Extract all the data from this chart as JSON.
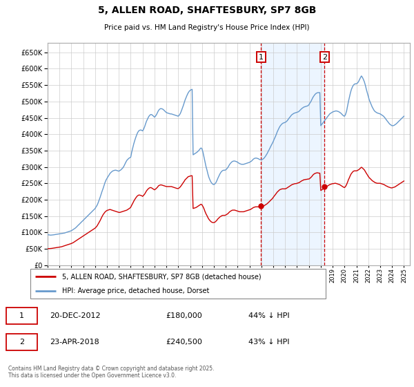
{
  "title": "5, ALLEN ROAD, SHAFTESBURY, SP7 8GB",
  "subtitle": "Price paid vs. HM Land Registry's House Price Index (HPI)",
  "ylim": [
    0,
    680000
  ],
  "yticks": [
    0,
    50000,
    100000,
    150000,
    200000,
    250000,
    300000,
    350000,
    400000,
    450000,
    500000,
    550000,
    600000,
    650000
  ],
  "xlim_start": 1995.0,
  "xlim_end": 2025.5,
  "hpi_color": "#6699cc",
  "price_color": "#cc0000",
  "sale1_date_num": 2012.97,
  "sale2_date_num": 2018.31,
  "sale1_price": 180000,
  "sale2_price": 240500,
  "box_color": "#cc0000",
  "shade_color": "#ddeeff",
  "footnote": "Contains HM Land Registry data © Crown copyright and database right 2025.\nThis data is licensed under the Open Government Licence v3.0.",
  "legend1": "5, ALLEN ROAD, SHAFTESBURY, SP7 8GB (detached house)",
  "legend2": "HPI: Average price, detached house, Dorset",
  "hpi_years": [
    1995.0,
    1995.08,
    1995.17,
    1995.25,
    1995.33,
    1995.42,
    1995.5,
    1995.58,
    1995.67,
    1995.75,
    1995.83,
    1995.92,
    1996.0,
    1996.08,
    1996.17,
    1996.25,
    1996.33,
    1996.42,
    1996.5,
    1996.58,
    1996.67,
    1996.75,
    1996.83,
    1996.92,
    1997.0,
    1997.08,
    1997.17,
    1997.25,
    1997.33,
    1997.42,
    1997.5,
    1997.58,
    1997.67,
    1997.75,
    1997.83,
    1997.92,
    1998.0,
    1998.08,
    1998.17,
    1998.25,
    1998.33,
    1998.42,
    1998.5,
    1998.58,
    1998.67,
    1998.75,
    1998.83,
    1998.92,
    1999.0,
    1999.08,
    1999.17,
    1999.25,
    1999.33,
    1999.42,
    1999.5,
    1999.58,
    1999.67,
    1999.75,
    1999.83,
    1999.92,
    2000.0,
    2000.08,
    2000.17,
    2000.25,
    2000.33,
    2000.42,
    2000.5,
    2000.58,
    2000.67,
    2000.75,
    2000.83,
    2000.92,
    2001.0,
    2001.08,
    2001.17,
    2001.25,
    2001.33,
    2001.42,
    2001.5,
    2001.58,
    2001.67,
    2001.75,
    2001.83,
    2001.92,
    2002.0,
    2002.08,
    2002.17,
    2002.25,
    2002.33,
    2002.42,
    2002.5,
    2002.58,
    2002.67,
    2002.75,
    2002.83,
    2002.92,
    2003.0,
    2003.08,
    2003.17,
    2003.25,
    2003.33,
    2003.42,
    2003.5,
    2003.58,
    2003.67,
    2003.75,
    2003.83,
    2003.92,
    2004.0,
    2004.08,
    2004.17,
    2004.25,
    2004.33,
    2004.42,
    2004.5,
    2004.58,
    2004.67,
    2004.75,
    2004.83,
    2004.92,
    2005.0,
    2005.08,
    2005.17,
    2005.25,
    2005.33,
    2005.42,
    2005.5,
    2005.58,
    2005.67,
    2005.75,
    2005.83,
    2005.92,
    2006.0,
    2006.08,
    2006.17,
    2006.25,
    2006.33,
    2006.42,
    2006.5,
    2006.58,
    2006.67,
    2006.75,
    2006.83,
    2006.92,
    2007.0,
    2007.08,
    2007.17,
    2007.25,
    2007.33,
    2007.42,
    2007.5,
    2007.58,
    2007.67,
    2007.75,
    2007.83,
    2007.92,
    2008.0,
    2008.08,
    2008.17,
    2008.25,
    2008.33,
    2008.42,
    2008.5,
    2008.58,
    2008.67,
    2008.75,
    2008.83,
    2008.92,
    2009.0,
    2009.08,
    2009.17,
    2009.25,
    2009.33,
    2009.42,
    2009.5,
    2009.58,
    2009.67,
    2009.75,
    2009.83,
    2009.92,
    2010.0,
    2010.08,
    2010.17,
    2010.25,
    2010.33,
    2010.42,
    2010.5,
    2010.58,
    2010.67,
    2010.75,
    2010.83,
    2010.92,
    2011.0,
    2011.08,
    2011.17,
    2011.25,
    2011.33,
    2011.42,
    2011.5,
    2011.58,
    2011.67,
    2011.75,
    2011.83,
    2011.92,
    2012.0,
    2012.08,
    2012.17,
    2012.25,
    2012.33,
    2012.42,
    2012.5,
    2012.58,
    2012.67,
    2012.75,
    2012.83,
    2012.92,
    2013.0,
    2013.08,
    2013.17,
    2013.25,
    2013.33,
    2013.42,
    2013.5,
    2013.58,
    2013.67,
    2013.75,
    2013.83,
    2013.92,
    2014.0,
    2014.08,
    2014.17,
    2014.25,
    2014.33,
    2014.42,
    2014.5,
    2014.58,
    2014.67,
    2014.75,
    2014.83,
    2014.92,
    2015.0,
    2015.08,
    2015.17,
    2015.25,
    2015.33,
    2015.42,
    2015.5,
    2015.58,
    2015.67,
    2015.75,
    2015.83,
    2015.92,
    2016.0,
    2016.08,
    2016.17,
    2016.25,
    2016.33,
    2016.42,
    2016.5,
    2016.58,
    2016.67,
    2016.75,
    2016.83,
    2016.92,
    2017.0,
    2017.08,
    2017.17,
    2017.25,
    2017.33,
    2017.42,
    2017.5,
    2017.58,
    2017.67,
    2017.75,
    2017.83,
    2017.92,
    2018.0,
    2018.08,
    2018.17,
    2018.25,
    2018.33,
    2018.42,
    2018.5,
    2018.58,
    2018.67,
    2018.75,
    2018.83,
    2018.92,
    2019.0,
    2019.08,
    2019.17,
    2019.25,
    2019.33,
    2019.42,
    2019.5,
    2019.58,
    2019.67,
    2019.75,
    2019.83,
    2019.92,
    2020.0,
    2020.08,
    2020.17,
    2020.25,
    2020.33,
    2020.42,
    2020.5,
    2020.58,
    2020.67,
    2020.75,
    2020.83,
    2020.92,
    2021.0,
    2021.08,
    2021.17,
    2021.25,
    2021.33,
    2021.42,
    2021.5,
    2021.58,
    2021.67,
    2021.75,
    2021.83,
    2021.92,
    2022.0,
    2022.08,
    2022.17,
    2022.25,
    2022.33,
    2022.42,
    2022.5,
    2022.58,
    2022.67,
    2022.75,
    2022.83,
    2022.92,
    2023.0,
    2023.08,
    2023.17,
    2023.25,
    2023.33,
    2023.42,
    2023.5,
    2023.58,
    2023.67,
    2023.75,
    2023.83,
    2023.92,
    2024.0,
    2024.08,
    2024.17,
    2024.25,
    2024.33,
    2024.42,
    2024.5,
    2024.58,
    2024.67,
    2024.75,
    2024.83,
    2024.92,
    2025.0
  ],
  "hpi_vals": [
    93000,
    92500,
    92000,
    91500,
    91800,
    92000,
    92500,
    93000,
    93500,
    94000,
    94500,
    95000,
    95500,
    96000,
    96500,
    97000,
    97500,
    98000,
    99000,
    100000,
    101000,
    102000,
    103000,
    104000,
    105000,
    107000,
    109000,
    111000,
    113000,
    116000,
    119000,
    122000,
    125000,
    128000,
    131000,
    134000,
    137000,
    140000,
    143000,
    146000,
    149000,
    152000,
    155000,
    158000,
    161000,
    164000,
    167000,
    170000,
    173000,
    178000,
    183000,
    190000,
    198000,
    207000,
    216000,
    225000,
    234000,
    243000,
    252000,
    260000,
    265000,
    270000,
    275000,
    280000,
    283000,
    286000,
    288000,
    289000,
    290000,
    290000,
    289000,
    288000,
    287000,
    289000,
    291000,
    294000,
    297000,
    302000,
    308000,
    314000,
    320000,
    323000,
    326000,
    328000,
    330000,
    345000,
    358000,
    370000,
    380000,
    390000,
    398000,
    405000,
    410000,
    412000,
    413000,
    412000,
    410000,
    415000,
    423000,
    432000,
    440000,
    447000,
    453000,
    457000,
    460000,
    460000,
    458000,
    455000,
    452000,
    455000,
    460000,
    466000,
    472000,
    476000,
    478000,
    478000,
    477000,
    475000,
    472000,
    469000,
    466000,
    465000,
    464000,
    463000,
    462000,
    462000,
    461000,
    460000,
    459000,
    458000,
    457000,
    456000,
    455000,
    458000,
    463000,
    470000,
    478000,
    487000,
    496000,
    505000,
    513000,
    520000,
    526000,
    531000,
    534000,
    536000,
    537000,
    337000,
    339000,
    341000,
    343000,
    345000,
    348000,
    351000,
    355000,
    358000,
    355000,
    345000,
    330000,
    316000,
    302000,
    290000,
    278000,
    268000,
    260000,
    254000,
    250000,
    247000,
    246000,
    248000,
    252000,
    258000,
    265000,
    272000,
    278000,
    283000,
    287000,
    289000,
    290000,
    290000,
    291000,
    294000,
    298000,
    303000,
    308000,
    312000,
    315000,
    317000,
    318000,
    318000,
    317000,
    316000,
    314000,
    312000,
    310000,
    309000,
    308000,
    308000,
    308000,
    309000,
    310000,
    311000,
    312000,
    313000,
    314000,
    316000,
    318000,
    321000,
    324000,
    326000,
    327000,
    327000,
    326000,
    325000,
    323000,
    322000,
    322000,
    323000,
    325000,
    328000,
    332000,
    337000,
    342000,
    348000,
    354000,
    360000,
    366000,
    372000,
    378000,
    385000,
    392000,
    399000,
    407000,
    414000,
    420000,
    425000,
    429000,
    432000,
    434000,
    435000,
    436000,
    438000,
    441000,
    445000,
    449000,
    453000,
    457000,
    460000,
    462000,
    464000,
    465000,
    466000,
    467000,
    468000,
    470000,
    473000,
    476000,
    479000,
    481000,
    483000,
    484000,
    485000,
    486000,
    487000,
    490000,
    495000,
    500000,
    506000,
    512000,
    517000,
    521000,
    524000,
    526000,
    527000,
    527000,
    527000,
    426000,
    430000,
    434000,
    438000,
    442000,
    446000,
    450000,
    454000,
    458000,
    462000,
    464000,
    466000,
    468000,
    469000,
    470000,
    471000,
    471000,
    470000,
    469000,
    467000,
    465000,
    462000,
    459000,
    456000,
    455000,
    460000,
    470000,
    485000,
    500000,
    514000,
    527000,
    537000,
    545000,
    550000,
    553000,
    554000,
    554000,
    556000,
    560000,
    566000,
    572000,
    578000,
    574000,
    568000,
    560000,
    550000,
    538000,
    526000,
    515000,
    505000,
    497000,
    490000,
    483000,
    477000,
    472000,
    469000,
    467000,
    465000,
    464000,
    463000,
    462000,
    460000,
    458000,
    456000,
    453000,
    449000,
    445000,
    441000,
    437000,
    433000,
    430000,
    428000,
    426000,
    426000,
    427000,
    429000,
    431000,
    434000,
    437000,
    440000,
    443000,
    446000,
    449000,
    452000,
    455000
  ],
  "price_years": [
    1995.0,
    1995.08,
    1995.17,
    1995.25,
    1995.33,
    1995.42,
    1995.5,
    1995.58,
    1995.67,
    1995.75,
    1995.83,
    1995.92,
    1996.0,
    1996.08,
    1996.17,
    1996.25,
    1996.33,
    1996.42,
    1996.5,
    1996.58,
    1996.67,
    1996.75,
    1996.83,
    1996.92,
    1997.0,
    1997.08,
    1997.17,
    1997.25,
    1997.33,
    1997.42,
    1997.5,
    1997.58,
    1997.67,
    1997.75,
    1997.83,
    1997.92,
    1998.0,
    1998.08,
    1998.17,
    1998.25,
    1998.33,
    1998.42,
    1998.5,
    1998.58,
    1998.67,
    1998.75,
    1998.83,
    1998.92,
    1999.0,
    1999.08,
    1999.17,
    1999.25,
    1999.33,
    1999.42,
    1999.5,
    1999.58,
    1999.67,
    1999.75,
    1999.83,
    1999.92,
    2000.0,
    2000.08,
    2000.17,
    2000.25,
    2000.33,
    2000.42,
    2000.5,
    2000.58,
    2000.67,
    2000.75,
    2000.83,
    2000.92,
    2001.0,
    2001.08,
    2001.17,
    2001.25,
    2001.33,
    2001.42,
    2001.5,
    2001.58,
    2001.67,
    2001.75,
    2001.83,
    2001.92,
    2002.0,
    2002.08,
    2002.17,
    2002.25,
    2002.33,
    2002.42,
    2002.5,
    2002.58,
    2002.67,
    2002.75,
    2002.83,
    2002.92,
    2003.0,
    2003.08,
    2003.17,
    2003.25,
    2003.33,
    2003.42,
    2003.5,
    2003.58,
    2003.67,
    2003.75,
    2003.83,
    2003.92,
    2004.0,
    2004.08,
    2004.17,
    2004.25,
    2004.33,
    2004.42,
    2004.5,
    2004.58,
    2004.67,
    2004.75,
    2004.83,
    2004.92,
    2005.0,
    2005.08,
    2005.17,
    2005.25,
    2005.33,
    2005.42,
    2005.5,
    2005.58,
    2005.67,
    2005.75,
    2005.83,
    2005.92,
    2006.0,
    2006.08,
    2006.17,
    2006.25,
    2006.33,
    2006.42,
    2006.5,
    2006.58,
    2006.67,
    2006.75,
    2006.83,
    2006.92,
    2007.0,
    2007.08,
    2007.17,
    2007.25,
    2007.33,
    2007.42,
    2007.5,
    2007.58,
    2007.67,
    2007.75,
    2007.83,
    2007.92,
    2008.0,
    2008.08,
    2008.17,
    2008.25,
    2008.33,
    2008.42,
    2008.5,
    2008.58,
    2008.67,
    2008.75,
    2008.83,
    2008.92,
    2009.0,
    2009.08,
    2009.17,
    2009.25,
    2009.33,
    2009.42,
    2009.5,
    2009.58,
    2009.67,
    2009.75,
    2009.83,
    2009.92,
    2010.0,
    2010.08,
    2010.17,
    2010.25,
    2010.33,
    2010.42,
    2010.5,
    2010.58,
    2010.67,
    2010.75,
    2010.83,
    2010.92,
    2011.0,
    2011.08,
    2011.17,
    2011.25,
    2011.33,
    2011.42,
    2011.5,
    2011.58,
    2011.67,
    2011.75,
    2011.83,
    2011.92,
    2012.0,
    2012.08,
    2012.17,
    2012.25,
    2012.33,
    2012.42,
    2012.5,
    2012.58,
    2012.67,
    2012.75,
    2012.83,
    2012.92,
    2013.0,
    2013.08,
    2013.17,
    2013.25,
    2013.33,
    2013.42,
    2013.5,
    2013.58,
    2013.67,
    2013.75,
    2013.83,
    2013.92,
    2014.0,
    2014.08,
    2014.17,
    2014.25,
    2014.33,
    2014.42,
    2014.5,
    2014.58,
    2014.67,
    2014.75,
    2014.83,
    2014.92,
    2015.0,
    2015.08,
    2015.17,
    2015.25,
    2015.33,
    2015.42,
    2015.5,
    2015.58,
    2015.67,
    2015.75,
    2015.83,
    2015.92,
    2016.0,
    2016.08,
    2016.17,
    2016.25,
    2016.33,
    2016.42,
    2016.5,
    2016.58,
    2016.67,
    2016.75,
    2016.83,
    2016.92,
    2017.0,
    2017.08,
    2017.17,
    2017.25,
    2017.33,
    2017.42,
    2017.5,
    2017.58,
    2017.67,
    2017.75,
    2017.83,
    2017.92,
    2018.0,
    2018.08,
    2018.17,
    2018.25,
    2018.33,
    2018.42,
    2018.5,
    2018.58,
    2018.67,
    2018.75,
    2018.83,
    2018.92,
    2019.0,
    2019.08,
    2019.17,
    2019.25,
    2019.33,
    2019.42,
    2019.5,
    2019.58,
    2019.67,
    2019.75,
    2019.83,
    2019.92,
    2020.0,
    2020.08,
    2020.17,
    2020.25,
    2020.33,
    2020.42,
    2020.5,
    2020.58,
    2020.67,
    2020.75,
    2020.83,
    2020.92,
    2021.0,
    2021.08,
    2021.17,
    2021.25,
    2021.33,
    2021.42,
    2021.5,
    2021.58,
    2021.67,
    2021.75,
    2021.83,
    2021.92,
    2022.0,
    2022.08,
    2022.17,
    2022.25,
    2022.33,
    2022.42,
    2022.5,
    2022.58,
    2022.67,
    2022.75,
    2022.83,
    2022.92,
    2023.0,
    2023.08,
    2023.17,
    2023.25,
    2023.33,
    2023.42,
    2023.5,
    2023.58,
    2023.67,
    2023.75,
    2023.83,
    2023.92,
    2024.0,
    2024.08,
    2024.17,
    2024.25,
    2024.33,
    2024.42,
    2024.5,
    2024.58,
    2024.67,
    2024.75,
    2024.83,
    2024.92,
    2025.0
  ],
  "price_vals": [
    50000,
    50200,
    50500,
    50700,
    51000,
    51500,
    52000,
    52500,
    53000,
    53500,
    54000,
    54500,
    55000,
    55500,
    56000,
    57000,
    58000,
    59000,
    60000,
    61000,
    62000,
    63000,
    64000,
    65000,
    66000,
    67500,
    69000,
    71000,
    73000,
    75000,
    77000,
    79000,
    81000,
    83000,
    85000,
    87000,
    89000,
    91000,
    93000,
    95000,
    97000,
    99000,
    101000,
    103000,
    105000,
    107000,
    109000,
    111000,
    113000,
    116000,
    120000,
    125000,
    130000,
    136000,
    142000,
    148000,
    154000,
    158000,
    162000,
    165000,
    167000,
    168000,
    169000,
    170000,
    169000,
    168000,
    167000,
    166000,
    165000,
    164000,
    163000,
    162000,
    161000,
    161000,
    162000,
    163000,
    164000,
    165000,
    166000,
    167000,
    168000,
    170000,
    172000,
    174000,
    177000,
    183000,
    189000,
    195000,
    200000,
    205000,
    209000,
    212000,
    214000,
    214000,
    213000,
    212000,
    210000,
    213000,
    217000,
    222000,
    227000,
    231000,
    234000,
    236000,
    237000,
    236000,
    234000,
    232000,
    230000,
    232000,
    235000,
    238000,
    242000,
    244000,
    245000,
    245000,
    244000,
    243000,
    242000,
    241000,
    240000,
    240000,
    240000,
    240000,
    240000,
    240000,
    239000,
    238000,
    237000,
    236000,
    235000,
    234000,
    234000,
    236000,
    239000,
    243000,
    247000,
    252000,
    256000,
    261000,
    264000,
    267000,
    270000,
    271000,
    272000,
    273000,
    273000,
    173000,
    174000,
    175000,
    176000,
    178000,
    180000,
    182000,
    184000,
    186000,
    184000,
    179000,
    172000,
    164000,
    157000,
    151000,
    145000,
    140000,
    136000,
    133000,
    131000,
    130000,
    130000,
    131000,
    134000,
    137000,
    141000,
    144000,
    147000,
    149000,
    151000,
    152000,
    152000,
    152000,
    153000,
    155000,
    157000,
    160000,
    163000,
    165000,
    167000,
    168000,
    168000,
    168000,
    167000,
    166000,
    165000,
    164000,
    163000,
    163000,
    163000,
    163000,
    163000,
    164000,
    165000,
    166000,
    167000,
    168000,
    169000,
    170000,
    172000,
    174000,
    176000,
    177000,
    178000,
    178000,
    178000,
    178000,
    177000,
    177000,
    178000,
    179000,
    180000,
    182000,
    184000,
    186000,
    188000,
    191000,
    194000,
    197000,
    200000,
    203000,
    207000,
    211000,
    215000,
    219000,
    223000,
    226000,
    229000,
    231000,
    232000,
    233000,
    233000,
    233000,
    233000,
    234000,
    236000,
    238000,
    240000,
    242000,
    244000,
    246000,
    247000,
    248000,
    249000,
    249000,
    250000,
    251000,
    252000,
    254000,
    256000,
    258000,
    259000,
    261000,
    261000,
    262000,
    262000,
    263000,
    263000,
    265000,
    268000,
    271000,
    275000,
    278000,
    280000,
    281000,
    282000,
    282000,
    281000,
    281000,
    228000,
    230000,
    232000,
    234000,
    236000,
    238000,
    240000,
    242000,
    244000,
    246000,
    247000,
    248000,
    249000,
    249000,
    250000,
    250000,
    249000,
    248000,
    247000,
    246000,
    244000,
    242000,
    240000,
    238000,
    237000,
    240000,
    246000,
    253000,
    261000,
    268000,
    275000,
    280000,
    284000,
    287000,
    288000,
    288000,
    288000,
    289000,
    291000,
    293000,
    296000,
    299000,
    297000,
    294000,
    291000,
    286000,
    281000,
    276000,
    271000,
    267000,
    264000,
    261000,
    258000,
    256000,
    254000,
    252000,
    251000,
    250000,
    250000,
    250000,
    250000,
    249000,
    248000,
    247000,
    246000,
    244000,
    242000,
    241000,
    239000,
    238000,
    237000,
    236000,
    236000,
    237000,
    238000,
    239000,
    241000,
    243000,
    245000,
    247000,
    249000,
    251000,
    253000,
    255000,
    257000
  ]
}
